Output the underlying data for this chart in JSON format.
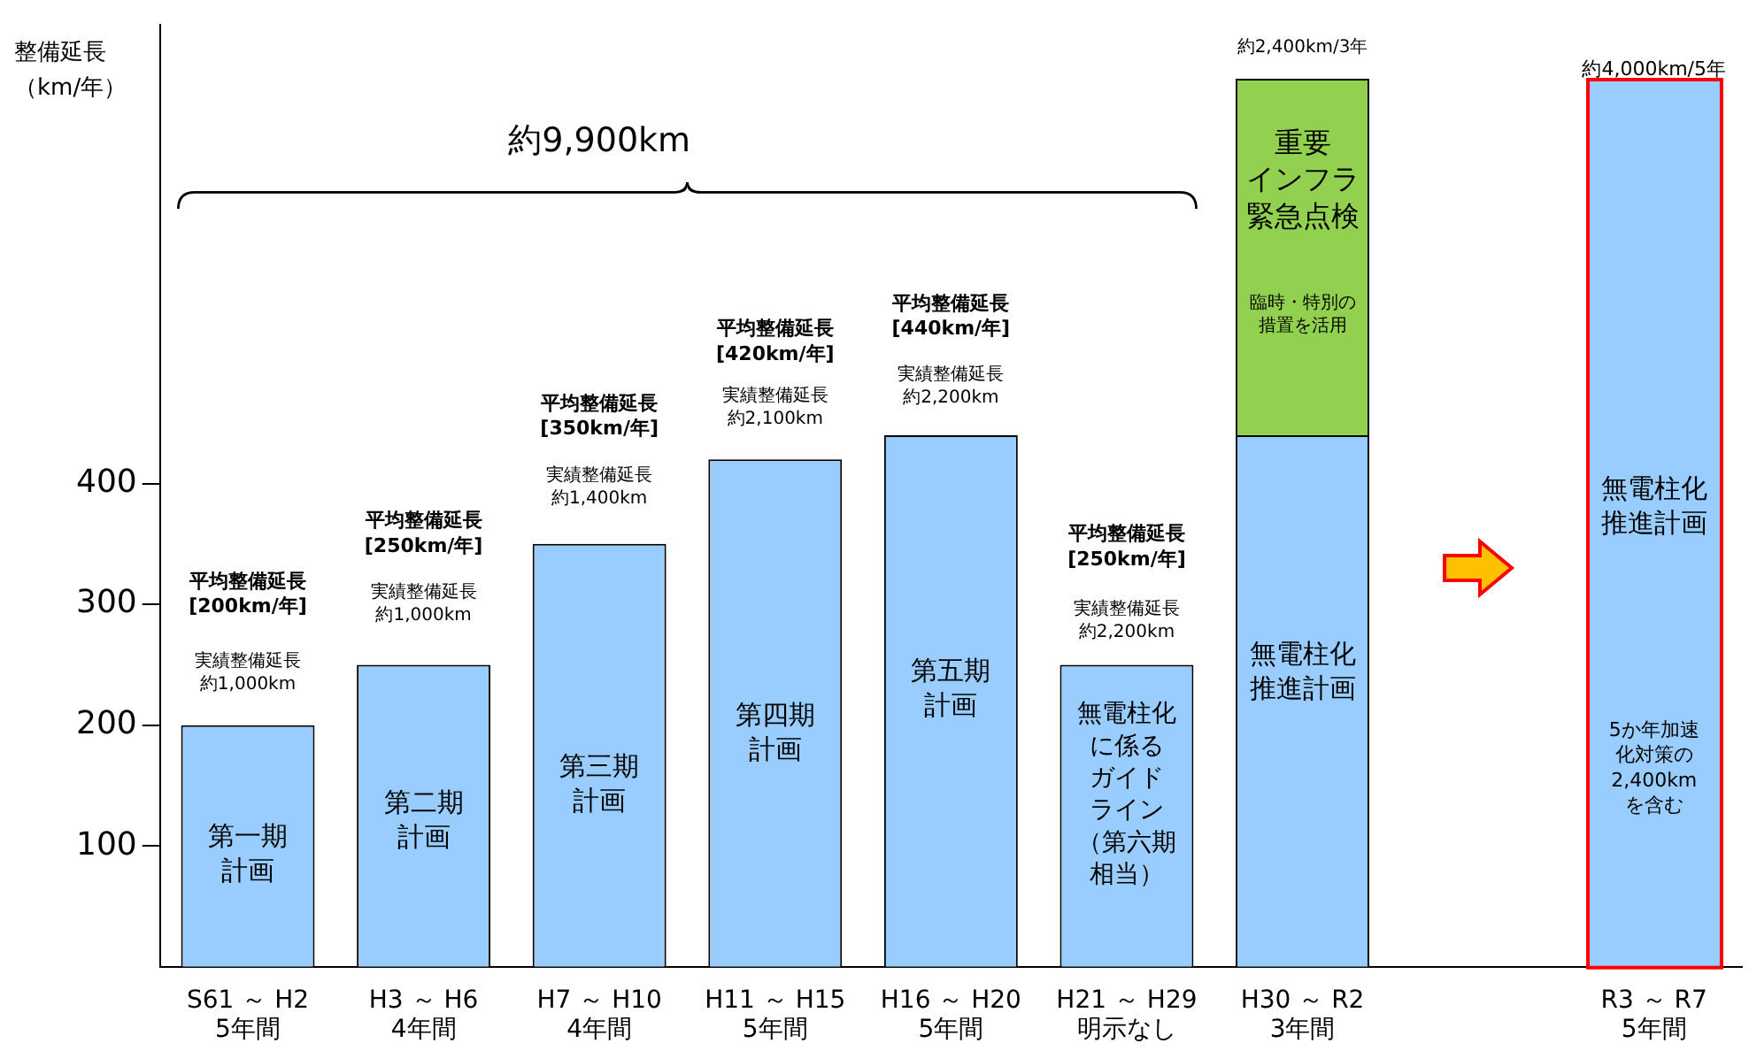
{
  "chart_data": {
    "type": "bar",
    "stacked": true,
    "ylabel": "整備延長（km/年）",
    "categories": [
      "S61 ～ H2\n5年間",
      "H3 ～ H6\n4年間",
      "H7 ～ H10\n4年間",
      "H11 ～ H15\n5年間",
      "H16 ～ H20\n5年間",
      "H21 ～ H29\n明示なし",
      "H30 ～ R2\n3年間",
      null,
      "R3 ～ R7\n5年間"
    ],
    "series": [
      {
        "color": "#99ccff",
        "values": [
          200,
          250,
          350,
          420,
          440,
          250,
          440,
          null,
          null
        ]
      },
      {
        "color": "#92d050",
        "values": [
          null,
          null,
          null,
          null,
          null,
          null,
          295,
          null,
          null
        ]
      },
      {
        "color": "#99ccff",
        "values": [
          null,
          null,
          null,
          null,
          null,
          null,
          null,
          null,
          735
        ]
      }
    ],
    "ylim": [
      0,
      780
    ],
    "yticks": [
      100,
      200,
      300,
      400
    ],
    "grid": false,
    "legend": false,
    "annotations": [
      "約9,900km",
      "第一期計画",
      "第二期計画",
      "第三期計画",
      "第四期計画",
      "第五期計画",
      "無電柱化に係るガイドライン（第六期相当）",
      "無電柱化推進計画",
      "重要インフラ緊急点検",
      "臨時・特別の措置を活用",
      "無電柱化推進計画",
      "5か年加速化対策の2,400kmを含む",
      "平均整備延長[200km/年]",
      "実績整備延長約1,000km",
      "平均整備延長[250km/年]",
      "実績整備延長約1,000km",
      "平均整備延長[350km/年]",
      "実績整備延長約1,400km",
      "平均整備延長[420km/年]",
      "実績整備延長約2,100km",
      "平均整備延長[440km/年]",
      "実績整備延長約2,200km",
      "平均整備延長[250km/年]",
      "実績整備延長約2,200km",
      "約2,400km/3年",
      "約4,000km/5年"
    ]
  }
}
